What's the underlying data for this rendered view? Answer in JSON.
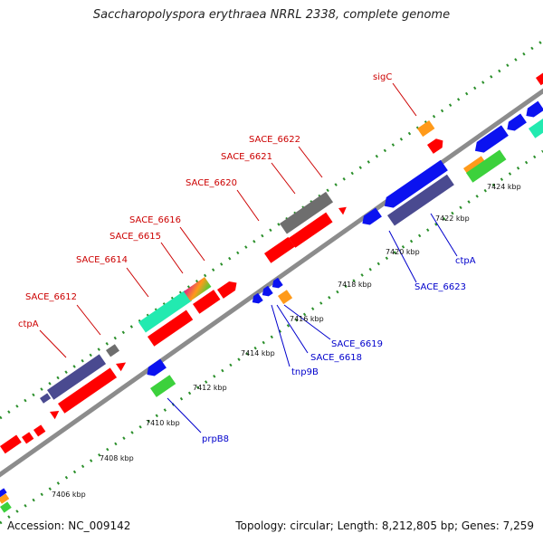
{
  "title": "Saccharopolyspora erythraea NRRL 2338, complete genome",
  "footer": {
    "accession": "Accession: NC_009142",
    "summary": "Topology: circular; Length: 8,212,805 bp; Genes: 7,259"
  },
  "colors": {
    "backbone": "#8c8c8c",
    "tick": "#2a8f2a",
    "label_forward": "#cc0000",
    "label_reverse": "#0000cc",
    "red": "#ff0000",
    "navy": "#4a4a90",
    "blue": "#0b12f0",
    "green": "#3cd13c",
    "cyan": "#22eab0",
    "gray": "#6e6e6e",
    "orange": "#ff9a1a",
    "magenta": "#e0208a"
  },
  "ticks": [
    "7406 kbp",
    "7408 kbp",
    "7410 kbp",
    "7412 kbp",
    "7414 kbp",
    "7416 kbp",
    "7418 kbp",
    "7420 kbp",
    "7422 kbp",
    "7424 kbp"
  ],
  "labels_forward": [
    "ctpA",
    "SACE_6612",
    "SACE_6614",
    "SACE_6615",
    "SACE_6616",
    "SACE_6620",
    "SACE_6621",
    "SACE_6622",
    "sigC"
  ],
  "labels_reverse": [
    "prpB8",
    "tnp9B",
    "SACE_6618",
    "SACE_6619",
    "SACE_6623",
    "ctpA"
  ]
}
